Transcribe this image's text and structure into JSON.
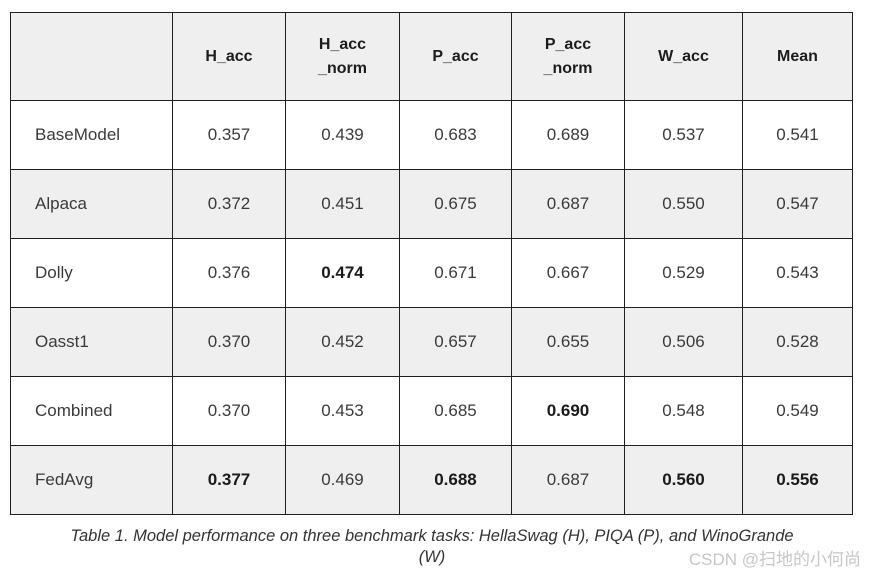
{
  "colors": {
    "header_background": "#efefef",
    "row_alt_background": "#efefef",
    "border": "#1f1f1f",
    "watermark": "#c6c6c6"
  },
  "table": {
    "headers": [
      "",
      "H_acc",
      "H_acc\n_norm",
      "P_acc",
      "P_acc\n_norm",
      "W_acc",
      "Mean"
    ],
    "rows": [
      {
        "label": "BaseModel",
        "values": [
          "0.357",
          "0.439",
          "0.683",
          "0.689",
          "0.537",
          "0.541"
        ],
        "bold": [
          false,
          false,
          false,
          false,
          false,
          false
        ]
      },
      {
        "label": "Alpaca",
        "values": [
          "0.372",
          "0.451",
          "0.675",
          "0.687",
          "0.550",
          "0.547"
        ],
        "bold": [
          false,
          false,
          false,
          false,
          false,
          false
        ]
      },
      {
        "label": "Dolly",
        "values": [
          "0.376",
          "0.474",
          "0.671",
          "0.667",
          "0.529",
          "0.543"
        ],
        "bold": [
          false,
          true,
          false,
          false,
          false,
          false
        ]
      },
      {
        "label": "Oasst1",
        "values": [
          "0.370",
          "0.452",
          "0.657",
          "0.655",
          "0.506",
          "0.528"
        ],
        "bold": [
          false,
          false,
          false,
          false,
          false,
          false
        ]
      },
      {
        "label": "Combined",
        "values": [
          "0.370",
          "0.453",
          "0.685",
          "0.690",
          "0.548",
          "0.549"
        ],
        "bold": [
          false,
          false,
          false,
          true,
          false,
          false
        ]
      },
      {
        "label": "FedAvg",
        "values": [
          "0.377",
          "0.469",
          "0.688",
          "0.687",
          "0.560",
          "0.556"
        ],
        "bold": [
          true,
          false,
          true,
          false,
          true,
          true
        ]
      }
    ]
  },
  "caption": {
    "line1": "Table 1. Model performance on three benchmark tasks: HellaSwag (H), PIQA (P), and WinoGrande",
    "line2": "(W)"
  },
  "watermark": {
    "text": "CSDN @扫地的小何尚"
  },
  "chart_data": {
    "type": "table",
    "title": "Table 1. Model performance on three benchmark tasks: HellaSwag (H), PIQA (P), and WinoGrande (W)",
    "columns": [
      "Model",
      "H_acc",
      "H_acc_norm",
      "P_acc",
      "P_acc_norm",
      "W_acc",
      "Mean"
    ],
    "rows": [
      {
        "Model": "BaseModel",
        "H_acc": 0.357,
        "H_acc_norm": 0.439,
        "P_acc": 0.683,
        "P_acc_norm": 0.689,
        "W_acc": 0.537,
        "Mean": 0.541
      },
      {
        "Model": "Alpaca",
        "H_acc": 0.372,
        "H_acc_norm": 0.451,
        "P_acc": 0.675,
        "P_acc_norm": 0.687,
        "W_acc": 0.55,
        "Mean": 0.547
      },
      {
        "Model": "Dolly",
        "H_acc": 0.376,
        "H_acc_norm": 0.474,
        "P_acc": 0.671,
        "P_acc_norm": 0.667,
        "W_acc": 0.529,
        "Mean": 0.543
      },
      {
        "Model": "Oasst1",
        "H_acc": 0.37,
        "H_acc_norm": 0.452,
        "P_acc": 0.657,
        "P_acc_norm": 0.655,
        "W_acc": 0.506,
        "Mean": 0.528
      },
      {
        "Model": "Combined",
        "H_acc": 0.37,
        "H_acc_norm": 0.453,
        "P_acc": 0.685,
        "P_acc_norm": 0.69,
        "W_acc": 0.548,
        "Mean": 0.549
      },
      {
        "Model": "FedAvg",
        "H_acc": 0.377,
        "H_acc_norm": 0.469,
        "P_acc": 0.688,
        "P_acc_norm": 0.687,
        "W_acc": 0.56,
        "Mean": 0.556
      }
    ],
    "bold_best_cells": [
      "Dolly:H_acc_norm",
      "Combined:P_acc_norm",
      "FedAvg:H_acc",
      "FedAvg:P_acc",
      "FedAvg:W_acc",
      "FedAvg:Mean"
    ],
    "legend_position": "none",
    "grid": true
  }
}
